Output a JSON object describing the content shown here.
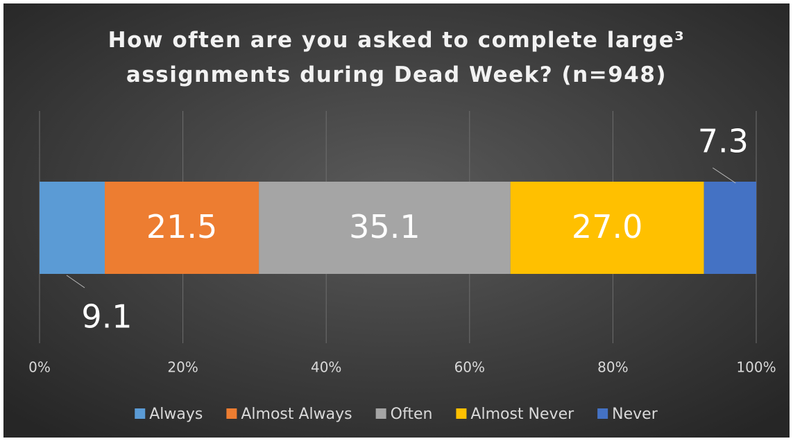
{
  "chart_data": {
    "type": "stacked_bar_100",
    "orientation": "horizontal",
    "title": "How often are you asked to complete large³ assignments during Dead Week? (n=948)",
    "series": [
      {
        "name": "Always",
        "color": "#5b9bd5",
        "values": [
          9.1
        ]
      },
      {
        "name": "Almost Always",
        "color": "#ed7d31",
        "values": [
          21.5
        ]
      },
      {
        "name": "Often",
        "color": "#a5a5a5",
        "values": [
          35.1
        ]
      },
      {
        "name": "Almost Never",
        "color": "#ffc000",
        "values": [
          27.0
        ],
        "value_labels": [
          "27.0"
        ]
      },
      {
        "name": "Never",
        "color": "#4472c4",
        "values": [
          7.3
        ]
      }
    ],
    "xlim": [
      0,
      100
    ],
    "xticks": [
      {
        "value": 0,
        "label": "0%"
      },
      {
        "value": 20,
        "label": "20%"
      },
      {
        "value": 40,
        "label": "40%"
      },
      {
        "value": 60,
        "label": "60%"
      },
      {
        "value": 80,
        "label": "80%"
      },
      {
        "value": 100,
        "label": "100%"
      }
    ],
    "grid": true,
    "legend": "bottom"
  }
}
